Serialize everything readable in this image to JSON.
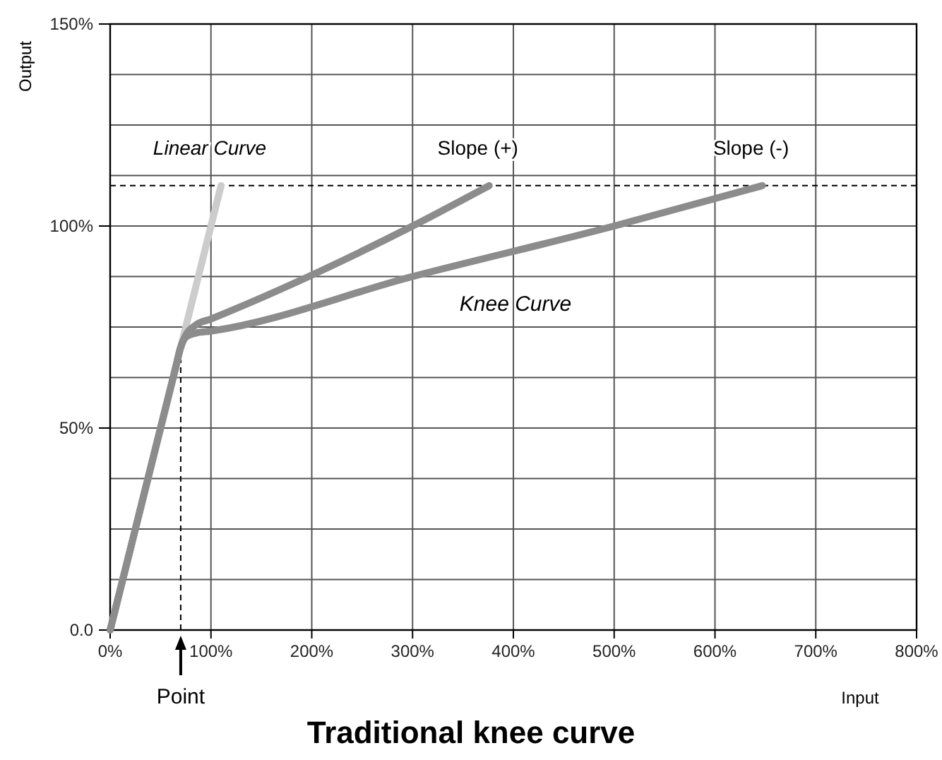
{
  "chart_data": {
    "type": "line",
    "title": "Traditional knee curve",
    "xlabel": "Input",
    "ylabel": "Output",
    "xlim": [
      0,
      800
    ],
    "ylim": [
      0,
      150
    ],
    "xticks": [
      {
        "value": 0,
        "label": "0%"
      },
      {
        "value": 100,
        "label": "100%"
      },
      {
        "value": 200,
        "label": "200%"
      },
      {
        "value": 300,
        "label": "300%"
      },
      {
        "value": 400,
        "label": "400%"
      },
      {
        "value": 500,
        "label": "500%"
      },
      {
        "value": 600,
        "label": "600%"
      },
      {
        "value": 700,
        "label": "700%"
      },
      {
        "value": 800,
        "label": "800%"
      }
    ],
    "yticks": [
      {
        "value": 0,
        "label": "0.0"
      },
      {
        "value": 12.5,
        "label": null
      },
      {
        "value": 25,
        "label": null
      },
      {
        "value": 37.5,
        "label": null
      },
      {
        "value": 50,
        "label": "50%"
      },
      {
        "value": 62.5,
        "label": null
      },
      {
        "value": 75,
        "label": null
      },
      {
        "value": 87.5,
        "label": null
      },
      {
        "value": 100,
        "label": "100%"
      },
      {
        "value": 112.5,
        "label": null
      },
      {
        "value": 125,
        "label": null
      },
      {
        "value": 137.5,
        "label": null
      },
      {
        "value": 150,
        "label": "150%"
      }
    ],
    "grid": true,
    "marker": "none",
    "line_style": "solid",
    "series": [
      {
        "name": "Linear Curve",
        "color": "#cccccc",
        "x": [
          70,
          110
        ],
        "values": [
          70,
          110
        ]
      },
      {
        "name": "Slope (+)",
        "color": "#8c8c8c",
        "x": [
          0,
          65,
          70,
          75,
          85,
          100,
          300,
          376
        ],
        "values": [
          0,
          65,
          70,
          73,
          75.5,
          77,
          100,
          110
        ]
      },
      {
        "name": "Slope (-)",
        "color": "#8c8c8c",
        "x": [
          0,
          65,
          70,
          75,
          85,
          100,
          300,
          500,
          647
        ],
        "values": [
          0,
          65,
          70,
          72.5,
          73.5,
          74,
          87.5,
          100,
          110
        ]
      }
    ],
    "ref_lines": [
      {
        "axis": "y",
        "value": 110,
        "line_style": "dashed"
      },
      {
        "axis": "x",
        "value": 70,
        "label": "Point",
        "line_style": "dashed"
      }
    ],
    "annotations": [
      "Knee Curve"
    ]
  }
}
